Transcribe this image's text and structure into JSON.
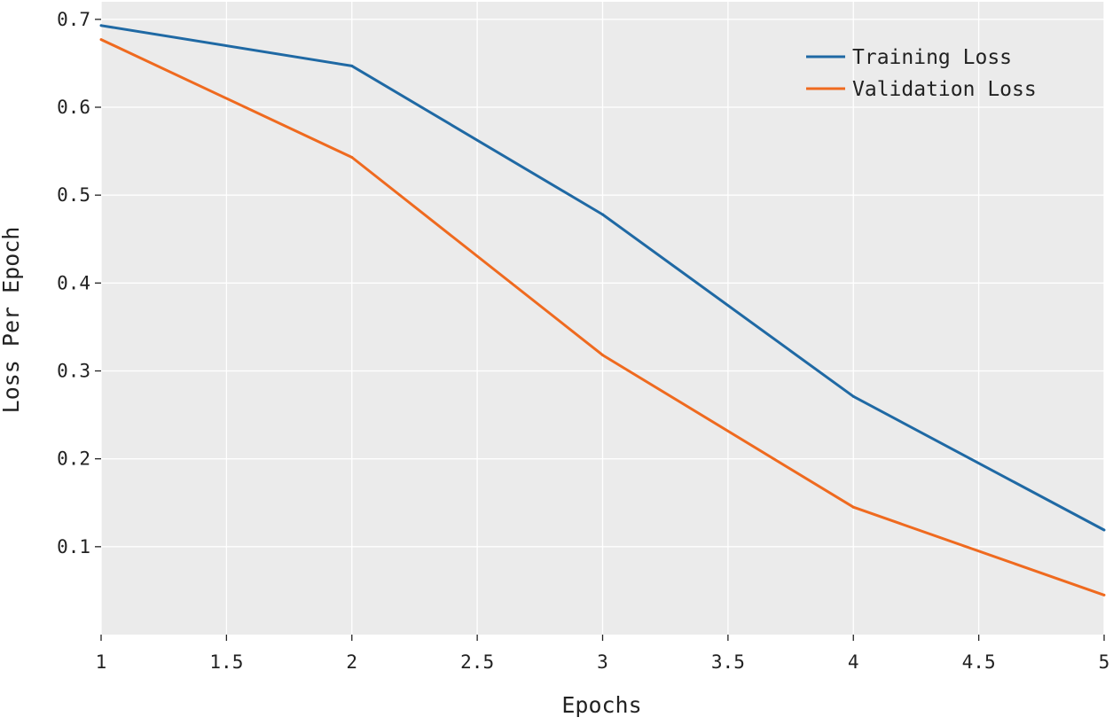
{
  "chart_data": {
    "type": "line",
    "title": "",
    "xlabel": "Epochs",
    "ylabel": "Loss Per Epoch",
    "x": [
      1,
      2,
      3,
      4,
      5
    ],
    "xlim": [
      1,
      5
    ],
    "ylim": [
      0.0,
      0.72
    ],
    "xticks": [
      1,
      1.5,
      2,
      2.5,
      3,
      3.5,
      4,
      4.5,
      5
    ],
    "xtick_labels": [
      "1",
      "1.5",
      "2",
      "2.5",
      "3",
      "3.5",
      "4",
      "4.5",
      "5"
    ],
    "yticks": [
      0.1,
      0.2,
      0.3,
      0.4,
      0.5,
      0.6,
      0.7
    ],
    "ytick_labels": [
      "0.1",
      "0.2",
      "0.3",
      "0.4",
      "0.5",
      "0.6",
      "0.7"
    ],
    "grid": true,
    "legend_position": "top-right",
    "series": [
      {
        "name": "Training Loss",
        "color": "#1f69a4",
        "values": [
          0.693,
          0.647,
          0.478,
          0.271,
          0.119
        ]
      },
      {
        "name": "Validation Loss",
        "color": "#ef6a1f",
        "values": [
          0.677,
          0.543,
          0.318,
          0.145,
          0.045
        ]
      }
    ],
    "colors": {
      "plot_background": "#ebebeb",
      "grid": "#ffffff",
      "text": "#222222"
    }
  }
}
